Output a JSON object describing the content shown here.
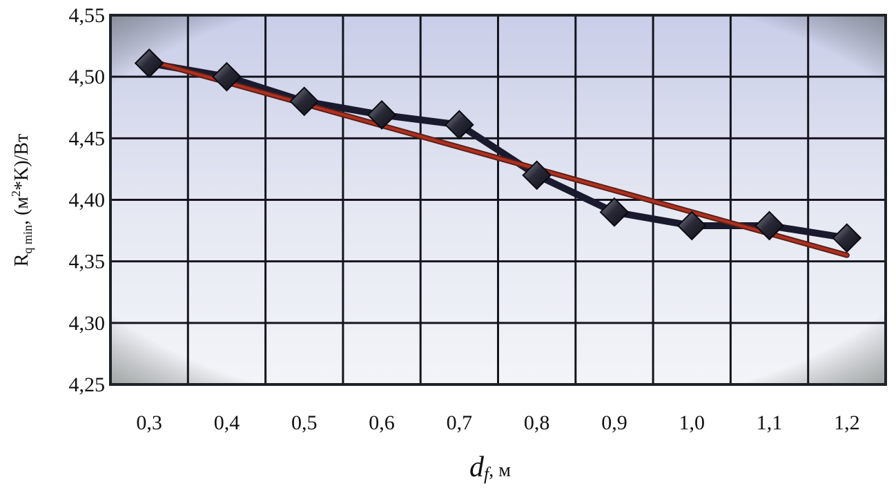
{
  "chart_data": {
    "type": "line",
    "title": "",
    "xlabel": {
      "main": "d",
      "sub": "f",
      "unit": ", м"
    },
    "ylabel": {
      "main": "R",
      "sub": "q min",
      "unit_prefix": ", (м",
      "unit_sup": "2",
      "unit_suffix": "*K)/Вт"
    },
    "x_tick_labels": [
      "0,3",
      "0,4",
      "0,5",
      "0,6",
      "0,7",
      "0,8",
      "0,9",
      "1,0",
      "1,1",
      "1,2"
    ],
    "y_tick_labels": [
      "4,55",
      "4,50",
      "4,45",
      "4,40",
      "4,35",
      "4,30",
      "4,25"
    ],
    "ylim": [
      4.25,
      4.55
    ],
    "y_ticks": [
      4.55,
      4.5,
      4.45,
      4.4,
      4.35,
      4.3,
      4.25
    ],
    "grid": true,
    "series": [
      {
        "x": [
          0.3,
          0.4,
          0.5,
          0.6,
          0.7,
          0.8,
          0.9,
          1.0,
          1.1,
          1.2
        ],
        "values": [
          4.511,
          4.5,
          4.48,
          4.469,
          4.461,
          4.42,
          4.39,
          4.379,
          4.379,
          4.369
        ],
        "color": "#1a1a2e",
        "marker": "diamond"
      },
      {
        "x": [
          0.3,
          1.2
        ],
        "values": [
          4.513,
          4.355
        ],
        "color": "#b03020",
        "marker": "none",
        "kind": "trend"
      }
    ],
    "colors": {
      "plot_bg_top": "#c9cde8",
      "plot_bg_bottom": "#f2f4f8",
      "grid": "#15151f",
      "frame": "#1e2226"
    }
  }
}
